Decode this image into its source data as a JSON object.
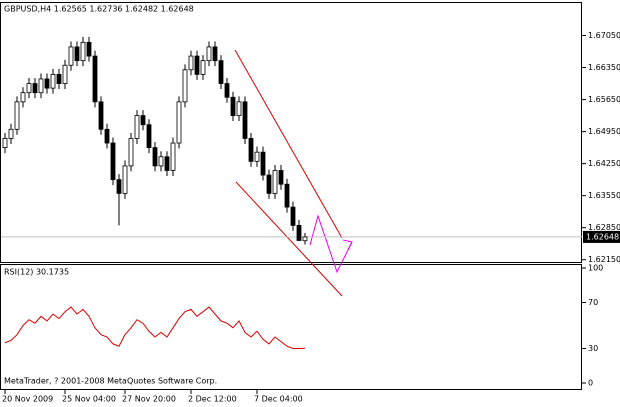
{
  "chart_data": [
    {
      "type": "candlestick",
      "title": "GBPUSD,H4  1.62565 1.62736 1.62482 1.62648",
      "categories": [
        "20 Nov 2009",
        null,
        null,
        null,
        null,
        null,
        null,
        null,
        null,
        null,
        "25 Nov 04:00",
        null,
        null,
        null,
        null,
        null,
        null,
        null,
        null,
        null,
        "27 Nov 20:00",
        null,
        null,
        null,
        null,
        null,
        null,
        null,
        null,
        null,
        null,
        "2 Dec 12:00",
        null,
        null,
        null,
        null,
        null,
        null,
        null,
        null,
        null,
        null,
        "7 Dec 04:00",
        null,
        null,
        null,
        null,
        null,
        null,
        null,
        null
      ],
      "open": [
        1.646,
        1.648,
        1.65,
        1.656,
        1.658,
        1.66,
        1.658,
        1.661,
        1.659,
        1.662,
        1.66,
        1.664,
        1.668,
        1.665,
        1.669,
        1.666,
        1.656,
        1.65,
        1.647,
        1.639,
        1.636,
        1.642,
        1.648,
        1.653,
        1.651,
        1.646,
        1.642,
        1.644,
        1.641,
        1.647,
        1.656,
        1.663,
        1.666,
        1.662,
        1.665,
        1.668,
        1.665,
        1.66,
        1.657,
        1.653,
        1.656,
        1.648,
        1.643,
        1.645,
        1.64,
        1.636,
        1.641,
        1.638,
        1.633,
        1.629,
        1.62565
      ],
      "high": [
        1.6492,
        1.6512,
        1.6572,
        1.6592,
        1.6612,
        1.6612,
        1.6622,
        1.6622,
        1.6632,
        1.6632,
        1.6652,
        1.6692,
        1.6692,
        1.6702,
        1.6702,
        1.6672,
        1.6572,
        1.6512,
        1.6482,
        1.6402,
        1.6432,
        1.6492,
        1.6542,
        1.6542,
        1.6522,
        1.6472,
        1.6452,
        1.6452,
        1.6482,
        1.6572,
        1.6642,
        1.6672,
        1.6672,
        1.6662,
        1.6692,
        1.6692,
        1.6662,
        1.6612,
        1.6582,
        1.6572,
        1.6572,
        1.6492,
        1.6462,
        1.6462,
        1.6412,
        1.6422,
        1.6422,
        1.6392,
        1.6342,
        1.6302,
        1.62736
      ],
      "low": [
        1.6448,
        1.6468,
        1.6488,
        1.6548,
        1.6568,
        1.6568,
        1.6568,
        1.6578,
        1.6578,
        1.6588,
        1.6588,
        1.6628,
        1.6638,
        1.6638,
        1.6648,
        1.6548,
        1.6488,
        1.6458,
        1.6378,
        1.629,
        1.6348,
        1.6408,
        1.6468,
        1.6498,
        1.6448,
        1.6408,
        1.6408,
        1.6398,
        1.6398,
        1.6458,
        1.6548,
        1.6618,
        1.6608,
        1.6608,
        1.6638,
        1.6638,
        1.6588,
        1.6558,
        1.6518,
        1.6518,
        1.6468,
        1.6418,
        1.6418,
        1.6388,
        1.6348,
        1.6348,
        1.6368,
        1.6318,
        1.6278,
        1.6258,
        1.62482
      ],
      "close": [
        1.648,
        1.65,
        1.656,
        1.658,
        1.66,
        1.658,
        1.661,
        1.659,
        1.662,
        1.66,
        1.664,
        1.668,
        1.665,
        1.669,
        1.666,
        1.656,
        1.65,
        1.647,
        1.639,
        1.636,
        1.642,
        1.648,
        1.653,
        1.651,
        1.646,
        1.642,
        1.644,
        1.641,
        1.647,
        1.656,
        1.663,
        1.666,
        1.662,
        1.665,
        1.668,
        1.665,
        1.66,
        1.657,
        1.653,
        1.656,
        1.648,
        1.643,
        1.645,
        1.64,
        1.636,
        1.641,
        1.638,
        1.633,
        1.629,
        1.6257,
        1.62648
      ],
      "ylim": [
        1.621,
        1.6776
      ],
      "yticks": [
        {
          "value": 1.6705,
          "label": "1.67050"
        },
        {
          "value": 1.6635,
          "label": "1.66350"
        },
        {
          "value": 1.6565,
          "label": "1.65650"
        },
        {
          "value": 1.6495,
          "label": "1.64950"
        },
        {
          "value": 1.6425,
          "label": "1.64250"
        },
        {
          "value": 1.6355,
          "label": "1.63550"
        },
        {
          "value": 1.6285,
          "label": "1.62850"
        },
        {
          "value": 1.6215,
          "label": "1.62150"
        }
      ],
      "price_line": {
        "value": 1.62648,
        "label": "1.62648"
      }
    },
    {
      "type": "line",
      "title": "RSI(12) 30.1735",
      "series": [
        {
          "name": "RSI(12)",
          "color": "#dd0000",
          "values": [
            35,
            37,
            42,
            50,
            55,
            52,
            58,
            54,
            60,
            56,
            62,
            66,
            60,
            64,
            58,
            48,
            42,
            40,
            34,
            32,
            42,
            48,
            55,
            52,
            45,
            40,
            44,
            40,
            48,
            56,
            62,
            64,
            58,
            62,
            66,
            60,
            54,
            52,
            48,
            54,
            44,
            40,
            45,
            38,
            34,
            40,
            36,
            32,
            30,
            30,
            30.1735
          ]
        }
      ],
      "ylim": [
        0,
        100
      ],
      "yticks": [
        0,
        30,
        70,
        100
      ],
      "annotation": "MetaTrader, ? 2001-2008 MetaQuotes Software Corp."
    }
  ]
}
